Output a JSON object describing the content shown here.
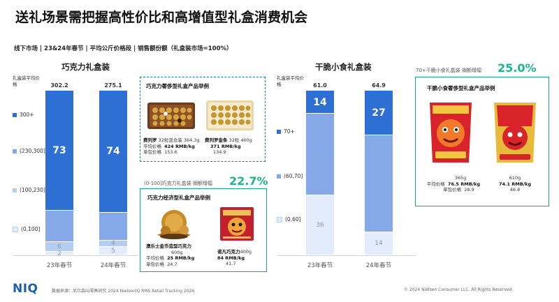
{
  "title": "送礼场景需把握高性价比和高增值型礼盒消费机会",
  "subtitle": "线下市场 | 23&24年春节 | 平均公斤价格段 | 销售额份额（礼盒装市场=100%）",
  "colors": {
    "dark": "#2d6fd2",
    "mid": "#85a9e8",
    "light": "#b6cdf2",
    "lightest": "#e3ecfb",
    "accent_blue": "#1f6fc1",
    "accent_green": "#12a88f",
    "growth_text": "#1bb58e"
  },
  "chart_data": [
    {
      "type": "bar",
      "title": "巧克力礼盒装",
      "ylabel": "礼盒装平均价格",
      "categories": [
        "23年春节",
        "24年春节"
      ],
      "totals": [
        "302.2",
        "275.1"
      ],
      "series": [
        {
          "name": "300+",
          "values": [
            73,
            74
          ]
        },
        {
          "name": "(230,300]",
          "values": [
            19,
            17
          ]
        },
        {
          "name": "(100,230]",
          "values": [
            6,
            4
          ]
        },
        {
          "name": "(0,100]",
          "values": [
            2,
            5
          ]
        }
      ]
    },
    {
      "type": "bar",
      "title": "干脆小食礼盒装",
      "ylabel": "礼盒装平均价格",
      "categories": [
        "23年春节",
        "24年春节"
      ],
      "totals": [
        "61.0",
        "64.9"
      ],
      "series": [
        {
          "name": "70+",
          "values": [
            14,
            27
          ]
        },
        {
          "name": "(60,70]",
          "values": [
            49,
            59
          ]
        },
        {
          "name": "(0,60]",
          "values": [
            36,
            14
          ]
        }
      ]
    }
  ],
  "callouts": {
    "choc_premium": {
      "title": "巧克力奢侈型礼盒产品举例",
      "p1_line1_bold": "费列罗",
      "p1_line1_rest": " 32粒混合装 364.3g",
      "p2_line1_bold": "费列罗金条",
      "p2_line1_rest": " 32粒 400g",
      "avg_label": "平均价格",
      "p1_avg": "424 RMB/kg",
      "p2_avg": "371 RMB/kg",
      "unit_label": "单包价格",
      "p1_unit": "153.6",
      "p2_unit": "134.9"
    },
    "choc_value": {
      "growth_note": "(0-100]巧克力礼盒装 销额增幅",
      "growth_value": "22.7%",
      "title": "巧克力经济型礼盒产品举例",
      "p1_name": "澳乐士金币造型巧克力",
      "p1_weight": "600g",
      "p2_name": "诺凡巧克力",
      "p2_weight": "400g",
      "avg_label": "平均价格",
      "p1_avg": "25 RMB/kg",
      "p2_avg": "84 RMB/kg",
      "unit_label": "单包价格",
      "p1_unit": "24.7",
      "p2_unit": "41.7"
    },
    "snack_premium": {
      "growth_note": "70+干脆小食礼盒装 销额增幅",
      "growth_value": "25.0%",
      "title": "干脆小食奢侈型礼盒产品举例",
      "p1_weight": "365g",
      "p2_weight": "610g",
      "avg_label": "平均价格",
      "p1_avg": "76.5 RMB/kg",
      "p2_avg": "74.1 RMB/kg",
      "unit_label": "单包价格",
      "p1_unit": "28.9",
      "p2_unit": "46.8"
    }
  },
  "footer": {
    "source": "数据来源：尼尔森IQ零售研究 2024 NielsenIQ RMS Retail Tracking 2024",
    "copyright": "© 2024 Nielsen Consumer LLC. All Rights Reserved.",
    "logo": "NIQ"
  }
}
